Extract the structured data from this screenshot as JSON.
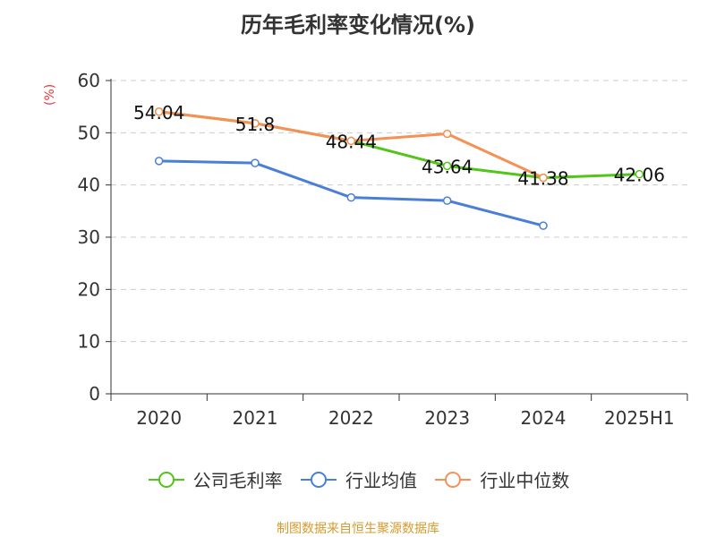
{
  "chart_data": {
    "type": "line",
    "title": "历年毛利率变化情况(%)",
    "ylabel": "(%)",
    "xlabel": "",
    "categories": [
      "2020",
      "2021",
      "2022",
      "2023",
      "2024",
      "2025H1"
    ],
    "ylim": [
      0,
      60
    ],
    "yticks": [
      0,
      10,
      20,
      30,
      40,
      50,
      60
    ],
    "grid": true,
    "legend_position": "bottom",
    "series": [
      {
        "name": "公司毛利率",
        "color": "#52c41a",
        "values": [
          54.04,
          51.8,
          48.44,
          43.64,
          41.38,
          42.06
        ],
        "labels": [
          "54.04",
          "51.8",
          "48.44",
          "43.64",
          "41.38",
          "42.06"
        ]
      },
      {
        "name": "行业均值",
        "color": "#4a7fd8",
        "values": [
          44.6,
          44.2,
          37.6,
          37.0,
          32.2,
          null
        ]
      },
      {
        "name": "行业中位数",
        "color": "#f59157",
        "values": [
          54.04,
          51.8,
          48.44,
          49.8,
          41.38,
          null
        ]
      }
    ]
  },
  "footer": {
    "source": "制图数据来自恒生聚源数据库"
  }
}
